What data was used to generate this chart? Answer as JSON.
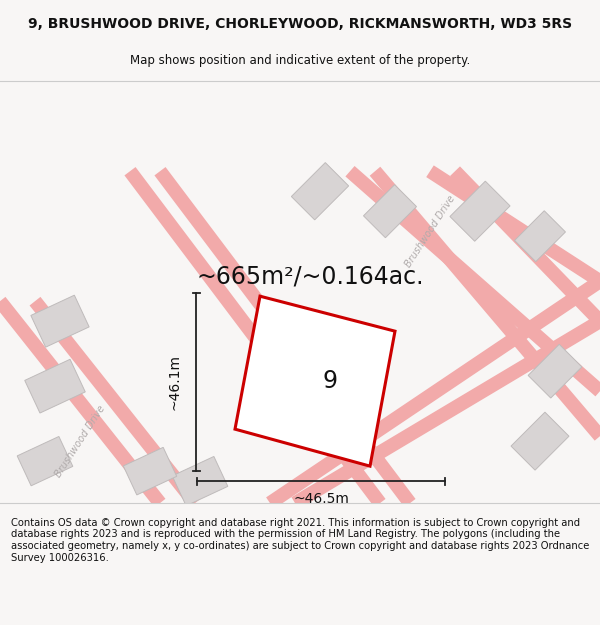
{
  "title": "9, BRUSHWOOD DRIVE, CHORLEYWOOD, RICKMANSWORTH, WD3 5RS",
  "subtitle": "Map shows position and indicative extent of the property.",
  "area_text": "~665m²/~0.164ac.",
  "label_9": "9",
  "dim_vertical": "~46.1m",
  "dim_horizontal": "~46.5m",
  "footer": "Contains OS data © Crown copyright and database right 2021. This information is subject to Crown copyright and database rights 2023 and is reproduced with the permission of HM Land Registry. The polygons (including the associated geometry, namely x, y co-ordinates) are subject to Crown copyright and database rights 2023 Ordnance Survey 100026316.",
  "bg_color": "#f8f6f5",
  "map_bg": "#efeceb",
  "road_color": "#f2aaaa",
  "building_color": "#d8d4d4",
  "building_edge": "#bfbbbb",
  "plot_color": "#ffffff",
  "plot_edge": "#cc0000",
  "dim_color": "#222222",
  "text_color": "#111111",
  "street_label_color": "#b0abab",
  "title_fontsize": 10,
  "subtitle_fontsize": 8.5,
  "area_fontsize": 17,
  "label9_fontsize": 17,
  "dim_fontsize": 10,
  "footer_fontsize": 7.2
}
